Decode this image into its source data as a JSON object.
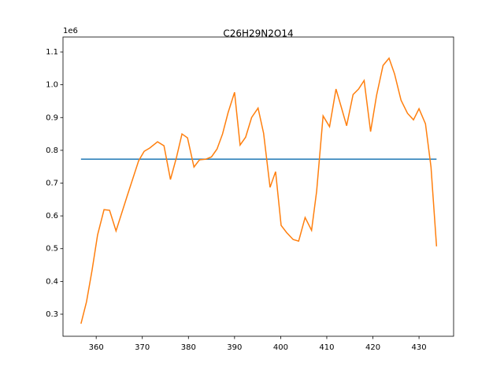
{
  "chart_data": {
    "type": "line",
    "title": "C26H29N2O14",
    "y_offset_label": "1e6",
    "xlim": [
      352.8,
      437.5
    ],
    "xticks": [
      360,
      370,
      380,
      390,
      400,
      410,
      420,
      430
    ],
    "ylim": [
      0.2327,
      1.1457
    ],
    "yticks": [
      0.3,
      0.4,
      0.5,
      0.6,
      0.7,
      0.8,
      0.9,
      1.0,
      1.1
    ],
    "grid": false,
    "series": [
      {
        "color": "#1f77b4",
        "x": [
          356.7,
          433.8
        ],
        "values": [
          0.773,
          0.773
        ]
      },
      {
        "color": "#ff7f0e",
        "x": [
          356.7,
          357.9,
          359.1,
          360.3,
          361.7,
          362.9,
          364.3,
          366.7,
          369.2,
          370.4,
          371.6,
          373.3,
          374.7,
          376.1,
          377.4,
          378.6,
          379.8,
          381.2,
          382.4,
          383.8,
          385.0,
          386.2,
          387.4,
          388.6,
          390.0,
          391.2,
          392.4,
          393.7,
          395.1,
          396.3,
          397.7,
          398.9,
          400.1,
          401.3,
          402.7,
          403.9,
          405.3,
          406.7,
          407.8,
          409.2,
          410.6,
          412.0,
          413.1,
          414.3,
          415.7,
          416.9,
          418.1,
          419.5,
          420.8,
          422.2,
          423.5,
          424.7,
          426.1,
          427.5,
          428.8,
          430.0,
          431.4,
          432.6,
          433.8
        ],
        "values": [
          0.271,
          0.338,
          0.434,
          0.542,
          0.619,
          0.617,
          0.554,
          0.66,
          0.768,
          0.797,
          0.807,
          0.826,
          0.814,
          0.711,
          0.778,
          0.85,
          0.838,
          0.749,
          0.771,
          0.773,
          0.78,
          0.804,
          0.85,
          0.915,
          0.977,
          0.816,
          0.84,
          0.9,
          0.929,
          0.852,
          0.687,
          0.735,
          0.571,
          0.549,
          0.528,
          0.523,
          0.595,
          0.556,
          0.675,
          0.905,
          0.872,
          0.987,
          0.934,
          0.875,
          0.97,
          0.987,
          1.013,
          0.857,
          0.968,
          1.059,
          1.081,
          1.033,
          0.953,
          0.913,
          0.893,
          0.927,
          0.881,
          0.749,
          0.507
        ]
      }
    ]
  }
}
